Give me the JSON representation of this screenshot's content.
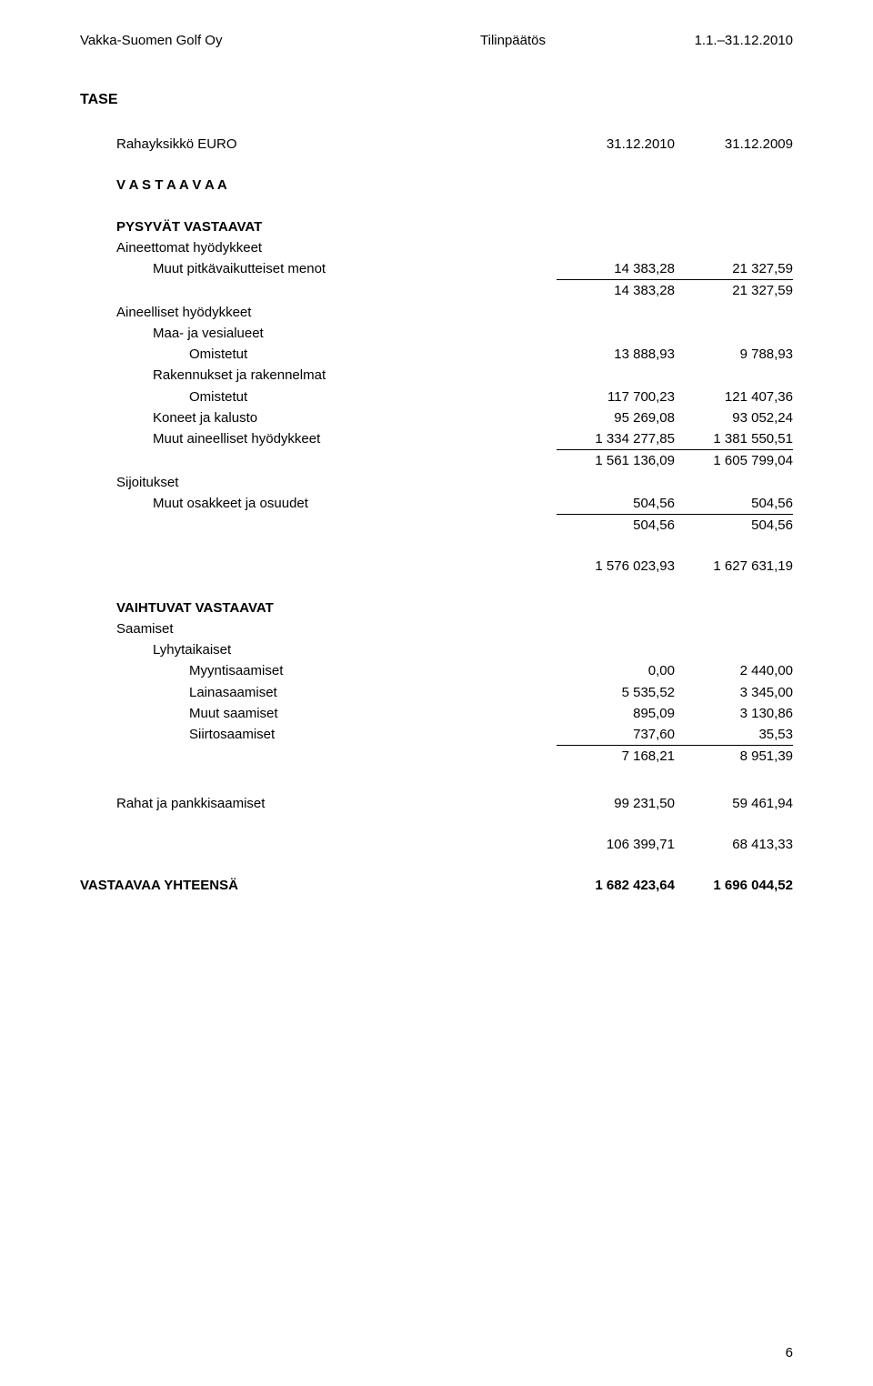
{
  "header": {
    "company": "Vakka-Suomen Golf Oy",
    "doc_type": "Tilinpäätös",
    "period": "1.1.–31.12.2010"
  },
  "title": "TASE",
  "currency_row": {
    "label": "Rahayksikkö EURO",
    "col1": "31.12.2010",
    "col2": "31.12.2009"
  },
  "section_vastaavaa": "V A S T A A V A A",
  "pysyvat": {
    "heading": "PYSYVÄT VASTAAVAT",
    "aineettomat_label": "Aineettomat hyödykkeet",
    "muut_pitka": {
      "label": "Muut pitkävaikutteiset menot",
      "v1": "14 383,28",
      "v2": "21 327,59"
    },
    "aineettomat_sum": {
      "v1": "14 383,28",
      "v2": "21 327,59"
    },
    "aineelliset_label": "Aineelliset hyödykkeet",
    "maa_label": "Maa- ja vesialueet",
    "maa_omistetut": {
      "label": "Omistetut",
      "v1": "13 888,93",
      "v2": "9 788,93"
    },
    "rak_label": "Rakennukset ja rakennelmat",
    "rak_omistetut": {
      "label": "Omistetut",
      "v1": "117 700,23",
      "v2": "121 407,36"
    },
    "koneet": {
      "label": "Koneet ja kalusto",
      "v1": "95 269,08",
      "v2": "93 052,24"
    },
    "muut_aineel": {
      "label": "Muut aineelliset hyödykkeet",
      "v1": "1 334 277,85",
      "v2": "1 381 550,51"
    },
    "aineel_sum": {
      "v1": "1 561 136,09",
      "v2": "1 605 799,04"
    },
    "sijoitukset_label": "Sijoitukset",
    "osakkeet": {
      "label": "Muut osakkeet ja osuudet",
      "v1": "504,56",
      "v2": "504,56"
    },
    "sijoitukset_sum": {
      "v1": "504,56",
      "v2": "504,56"
    },
    "pysyvat_sum": {
      "v1": "1 576 023,93",
      "v2": "1 627 631,19"
    }
  },
  "vaihtuvat": {
    "heading": "VAIHTUVAT VASTAAVAT",
    "saamiset_label": "Saamiset",
    "lyhyt_label": "Lyhytaikaiset",
    "myynti": {
      "label": "Myyntisaamiset",
      "v1": "0,00",
      "v2": "2 440,00"
    },
    "laina": {
      "label": "Lainasaamiset",
      "v1": "5 535,52",
      "v2": "3 345,00"
    },
    "muut": {
      "label": "Muut saamiset",
      "v1": "895,09",
      "v2": "3 130,86"
    },
    "siirto": {
      "label": "Siirtosaamiset",
      "v1": "737,60",
      "v2": "35,53"
    },
    "lyhyt_sum": {
      "v1": "7 168,21",
      "v2": "8 951,39"
    }
  },
  "rahat": {
    "label": "Rahat ja pankkisaamiset",
    "v1": "99 231,50",
    "v2": "59 461,94"
  },
  "vaihtuvat_sum": {
    "v1": "106 399,71",
    "v2": "68 413,33"
  },
  "vastaavaa_total": {
    "label": "VASTAAVAA YHTEENSÄ",
    "v1": "1 682 423,64",
    "v2": "1 696 044,52"
  },
  "page_num": "6"
}
